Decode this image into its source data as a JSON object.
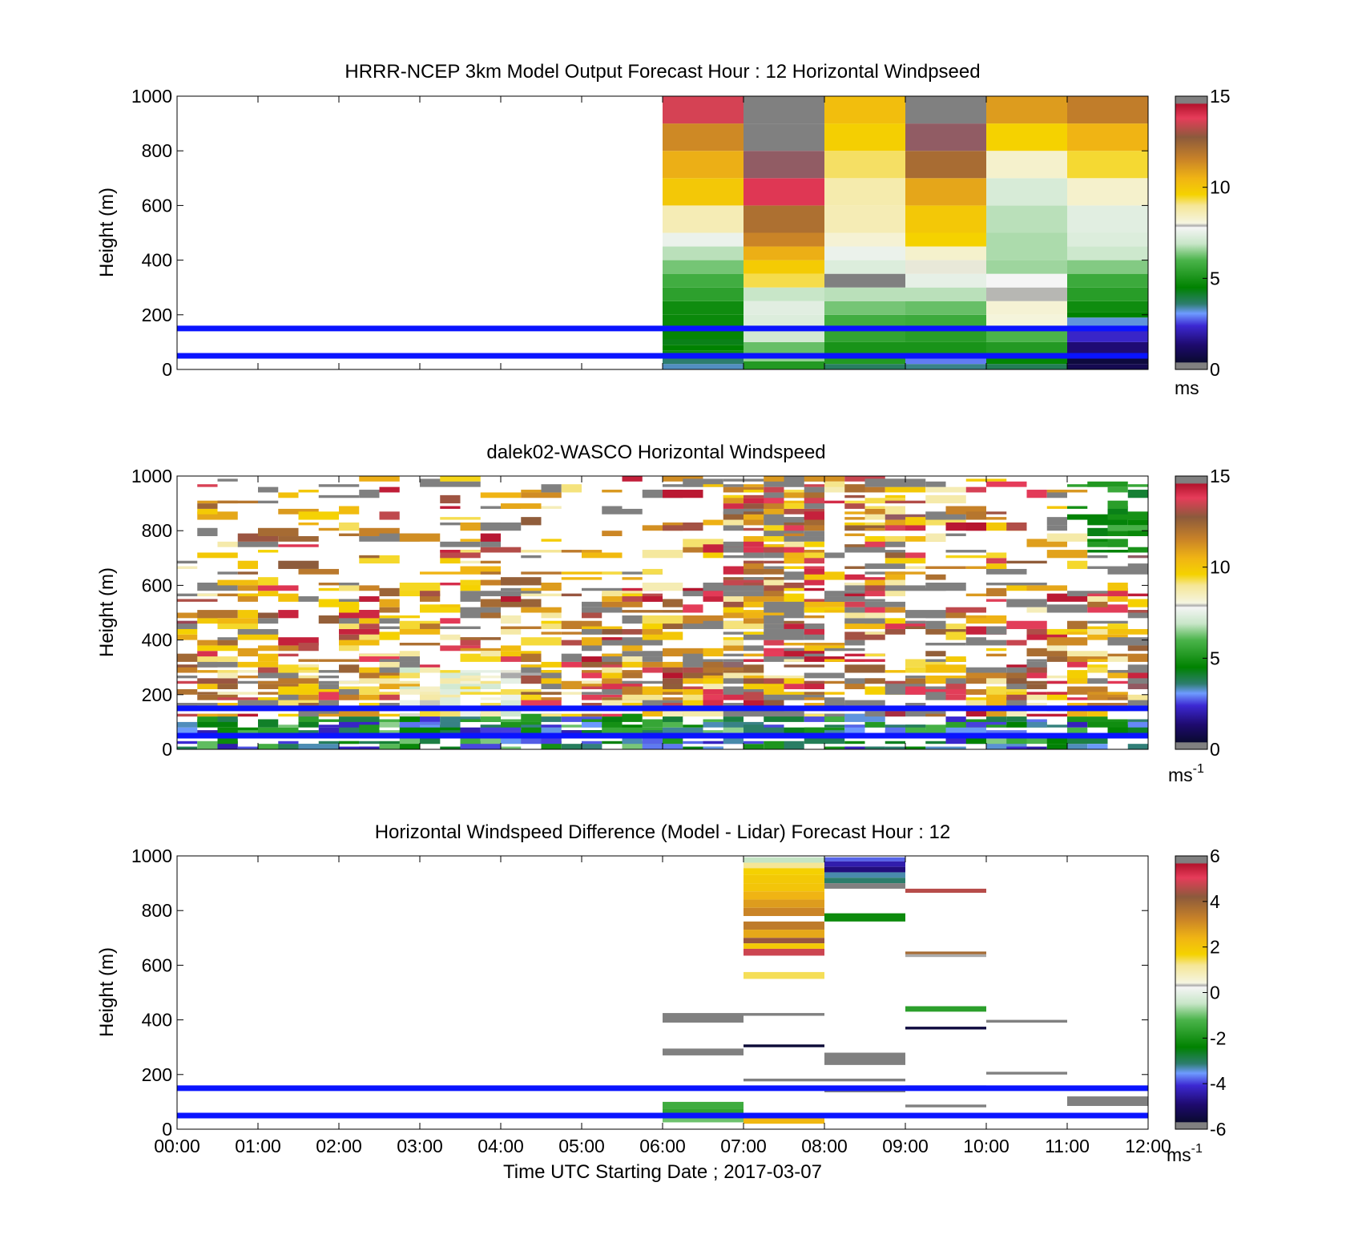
{
  "chart_data": [
    {
      "type": "heatmap",
      "title": "HRRR-NCEP 3km Model Output   Forecast Hour : 12 Horizontal Windpseed",
      "ylabel": "Height (m)",
      "xlim": [
        0,
        12
      ],
      "ylim": [
        0,
        1000
      ],
      "yticks": [
        "0",
        "200",
        "400",
        "600",
        "800",
        "1000"
      ],
      "colorbar": {
        "min": 0,
        "max": 15,
        "ticks": [
          "0",
          "5",
          "10",
          "15"
        ],
        "unit": "ms",
        "unit_sup": ""
      },
      "reference_lines_m": [
        50,
        150
      ],
      "columns": [
        {
          "x0": 6,
          "x1": 7,
          "cells": [
            [
              0,
              20,
              3.3
            ],
            [
              20,
              40,
              3.6
            ],
            [
              40,
              70,
              4.8
            ],
            [
              70,
              90,
              4.5
            ],
            [
              90,
              110,
              4.3
            ],
            [
              110,
              150,
              4.6
            ],
            [
              150,
              200,
              4.7
            ],
            [
              200,
              250,
              4.8
            ],
            [
              250,
              300,
              5.4
            ],
            [
              300,
              350,
              5.8
            ],
            [
              350,
              400,
              6.3
            ],
            [
              400,
              450,
              6.8
            ],
            [
              450,
              500,
              7.6
            ],
            [
              500,
              600,
              8.6
            ],
            [
              600,
              700,
              9.9
            ],
            [
              700,
              800,
              10.6
            ],
            [
              800,
              900,
              11.4
            ],
            [
              900,
              1000,
              13.6
            ]
          ]
        },
        {
          "x0": 7,
          "x1": 8,
          "cells": [
            [
              0,
              30,
              5.2
            ],
            [
              30,
              60,
              6.5
            ],
            [
              60,
              100,
              6.2
            ],
            [
              100,
              150,
              7.1
            ],
            [
              150,
              200,
              7.3
            ],
            [
              200,
              250,
              7.4
            ],
            [
              250,
              300,
              6.9
            ],
            [
              300,
              350,
              9.3
            ],
            [
              350,
              400,
              9.8
            ],
            [
              400,
              450,
              10.6
            ],
            [
              450,
              500,
              11.5
            ],
            [
              500,
              600,
              12.1
            ],
            [
              600,
              700,
              13.9
            ],
            [
              700,
              800,
              14.6
            ],
            [
              800,
              900,
              0
            ],
            [
              900,
              1000,
              0
            ]
          ]
        },
        {
          "x0": 8,
          "x1": 9,
          "cells": [
            [
              0,
              20,
              3.7
            ],
            [
              20,
              50,
              5.2
            ],
            [
              50,
              100,
              5.0
            ],
            [
              100,
              150,
              5.5
            ],
            [
              150,
              200,
              5.8
            ],
            [
              200,
              250,
              6.3
            ],
            [
              250,
              300,
              6.8
            ],
            [
              300,
              350,
              0
            ],
            [
              350,
              400,
              7.3
            ],
            [
              400,
              450,
              7.6
            ],
            [
              450,
              500,
              8.2
            ],
            [
              500,
              600,
              8.6
            ],
            [
              600,
              700,
              8.7
            ],
            [
              700,
              800,
              9.2
            ],
            [
              800,
              900,
              9.7
            ],
            [
              900,
              1000,
              10.2
            ]
          ]
        },
        {
          "x0": 9,
          "x1": 10,
          "cells": [
            [
              0,
              20,
              3.5
            ],
            [
              20,
              40,
              2.9
            ],
            [
              40,
              60,
              4.4
            ],
            [
              60,
              100,
              5.0
            ],
            [
              100,
              150,
              5.3
            ],
            [
              150,
              200,
              5.7
            ],
            [
              200,
              250,
              6.2
            ],
            [
              250,
              300,
              6.8
            ],
            [
              300,
              350,
              7.5
            ],
            [
              350,
              400,
              8.0
            ],
            [
              400,
              450,
              8.3
            ],
            [
              450,
              500,
              9.6
            ],
            [
              500,
              600,
              9.9
            ],
            [
              600,
              700,
              10.8
            ],
            [
              700,
              800,
              12.2
            ],
            [
              800,
              900,
              14.6
            ],
            [
              900,
              1000,
              0
            ]
          ]
        },
        {
          "x0": 10,
          "x1": 11,
          "cells": [
            [
              0,
              20,
              3.8
            ],
            [
              20,
              50,
              4.6
            ],
            [
              50,
              100,
              5.2
            ],
            [
              100,
              150,
              6.0
            ],
            [
              150,
              200,
              8.1
            ],
            [
              200,
              250,
              8.2
            ],
            [
              250,
              300,
              7.9
            ],
            [
              300,
              350,
              7.8
            ],
            [
              350,
              400,
              6.6
            ],
            [
              400,
              500,
              6.7
            ],
            [
              500,
              600,
              6.8
            ],
            [
              600,
              700,
              7.2
            ],
            [
              700,
              800,
              8.3
            ],
            [
              800,
              900,
              9.6
            ],
            [
              900,
              1000,
              11.0
            ]
          ]
        },
        {
          "x0": 11,
          "x1": 12,
          "cells": [
            [
              0,
              20,
              0.9
            ],
            [
              20,
              50,
              0.6
            ],
            [
              50,
              100,
              1.4
            ],
            [
              100,
              150,
              2.3
            ],
            [
              150,
              190,
              3.2
            ],
            [
              190,
              210,
              4.5
            ],
            [
              210,
              250,
              4.8
            ],
            [
              250,
              300,
              5.3
            ],
            [
              300,
              350,
              5.7
            ],
            [
              350,
              400,
              6.4
            ],
            [
              400,
              450,
              7.0
            ],
            [
              450,
              500,
              7.3
            ],
            [
              500,
              600,
              7.4
            ],
            [
              600,
              700,
              8.3
            ],
            [
              700,
              800,
              9.4
            ],
            [
              800,
              900,
              10.5
            ],
            [
              900,
              1000,
              11.7
            ]
          ]
        }
      ]
    },
    {
      "type": "heatmap",
      "title": "dalek02-WASCO  Horizontal Windspeed",
      "ylabel": "Height (m)",
      "xlim": [
        0,
        12
      ],
      "ylim": [
        0,
        1000
      ],
      "yticks": [
        "0",
        "200",
        "400",
        "600",
        "800",
        "1000"
      ],
      "colorbar": {
        "min": 0,
        "max": 15,
        "ticks": [
          "0",
          "5",
          "10",
          "15"
        ],
        "unit": "ms",
        "unit_sup": "-1"
      },
      "reference_lines_m": [
        50,
        150
      ]
    },
    {
      "type": "heatmap",
      "title": "Horizontal Windspeed Difference (Model - Lidar) Forecast Hour : 12",
      "ylabel": "Height (m)",
      "xlabel": "Time UTC  Starting Date ; 2017-03-07",
      "xlim": [
        0,
        12
      ],
      "ylim": [
        0,
        1000
      ],
      "yticks": [
        "0",
        "200",
        "400",
        "600",
        "800",
        "1000"
      ],
      "xticks": [
        "00:00",
        "01:00",
        "02:00",
        "03:00",
        "04:00",
        "05:00",
        "06:00",
        "07:00",
        "08:00",
        "09:00",
        "10:00",
        "11:00",
        "12:00"
      ],
      "colorbar": {
        "min": -6,
        "max": 6,
        "ticks": [
          "-6",
          "-4",
          "-2",
          "0",
          "2",
          "4",
          "6"
        ],
        "unit": "ms",
        "unit_sup": "-1"
      },
      "reference_lines_m": [
        50,
        150
      ],
      "cells": [
        [
          6,
          7,
          390,
          425,
          5.8
        ],
        [
          6,
          7,
          270,
          295,
          5.8
        ],
        [
          6,
          7,
          75,
          100,
          -1.4
        ],
        [
          6,
          7,
          50,
          75,
          -1.6
        ],
        [
          6,
          7,
          25,
          50,
          -1.0
        ],
        [
          7,
          8,
          975,
          995,
          -0.5
        ],
        [
          7,
          8,
          955,
          975,
          1.2
        ],
        [
          7,
          8,
          930,
          955,
          1.7
        ],
        [
          7,
          8,
          900,
          930,
          1.9
        ],
        [
          7,
          8,
          870,
          900,
          2.0
        ],
        [
          7,
          8,
          840,
          870,
          2.4
        ],
        [
          7,
          8,
          810,
          840,
          2.8
        ],
        [
          7,
          8,
          780,
          810,
          3.2
        ],
        [
          7,
          8,
          730,
          760,
          3.4
        ],
        [
          7,
          8,
          700,
          730,
          2.6
        ],
        [
          7,
          8,
          680,
          700,
          4.3
        ],
        [
          7,
          8,
          660,
          680,
          1.9
        ],
        [
          7,
          8,
          635,
          660,
          4.8
        ],
        [
          7,
          8,
          550,
          575,
          1.4
        ],
        [
          7,
          8,
          415,
          425,
          -6.0
        ],
        [
          7,
          8,
          300,
          310,
          -5.6
        ],
        [
          7,
          8,
          175,
          185,
          5.8
        ],
        [
          7,
          8,
          20,
          45,
          2.3
        ],
        [
          8,
          9,
          980,
          995,
          -3.8
        ],
        [
          8,
          9,
          960,
          980,
          -4.4
        ],
        [
          8,
          9,
          940,
          960,
          -4.8
        ],
        [
          8,
          9,
          920,
          940,
          -3.3
        ],
        [
          8,
          9,
          900,
          920,
          -3.1
        ],
        [
          8,
          9,
          880,
          900,
          -6.0
        ],
        [
          8,
          9,
          760,
          790,
          -2.2
        ],
        [
          8,
          9,
          235,
          280,
          5.8
        ],
        [
          8,
          9,
          175,
          185,
          5.8
        ],
        [
          8,
          9,
          135,
          150,
          5.8
        ],
        [
          9,
          10,
          865,
          880,
          4.6
        ],
        [
          9,
          10,
          640,
          650,
          3.8
        ],
        [
          9,
          10,
          630,
          640,
          0.3
        ],
        [
          9,
          10,
          430,
          450,
          -1.7
        ],
        [
          9,
          10,
          365,
          375,
          -5.5
        ],
        [
          9,
          10,
          150,
          160,
          -3.0
        ],
        [
          9,
          10,
          80,
          90,
          5.8
        ],
        [
          10,
          11,
          390,
          400,
          5.8
        ],
        [
          10,
          11,
          200,
          210,
          -5.9
        ],
        [
          11,
          12,
          85,
          120,
          5.8
        ]
      ]
    }
  ]
}
